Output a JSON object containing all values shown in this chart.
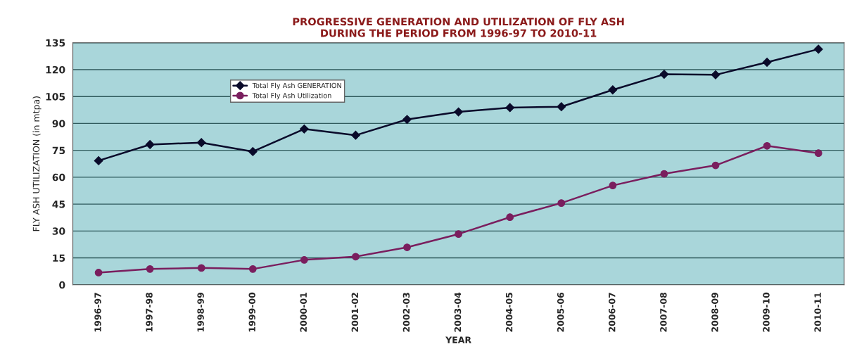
{
  "chart_data": {
    "type": "line",
    "title": "PROGRESSIVE GENERATION AND UTILIZATION OF FLY ASH\nDURING THE PERIOD FROM 1996-97 TO 2010-11",
    "xlabel": "YEAR",
    "ylabel": "FLY ASH UTILIZATION (in mtpa)",
    "categories": [
      "1996-97",
      "1997-98",
      "1998-99",
      "1999-00",
      "2000-01",
      "2001-02",
      "2002-03",
      "2003-04",
      "2004-05",
      "2005-06",
      "2006-07",
      "2007-08",
      "2008-09",
      "2009-10",
      "2010-11"
    ],
    "series": [
      {
        "name": "Total Fly Ash GENERATION",
        "color": "#0a0a2a",
        "marker": "diamond",
        "values": [
          69.2,
          78.2,
          79.3,
          74.3,
          86.9,
          83.4,
          92.2,
          96.4,
          98.8,
          99.3,
          108.7,
          117.4,
          117.1,
          124.1,
          131.4
        ]
      },
      {
        "name": "Total Fly Ash Utilization",
        "color": "#7a1e5e",
        "marker": "circle",
        "values": [
          6.8,
          8.8,
          9.4,
          8.8,
          13.9,
          15.7,
          20.9,
          28.3,
          37.7,
          45.6,
          55.4,
          61.9,
          66.6,
          77.5,
          73.4
        ]
      }
    ],
    "ylim": [
      0,
      135
    ],
    "yticks": [
      0,
      15,
      30,
      45,
      60,
      75,
      90,
      105,
      120,
      135
    ],
    "grid": "y",
    "legend": "top left"
  }
}
